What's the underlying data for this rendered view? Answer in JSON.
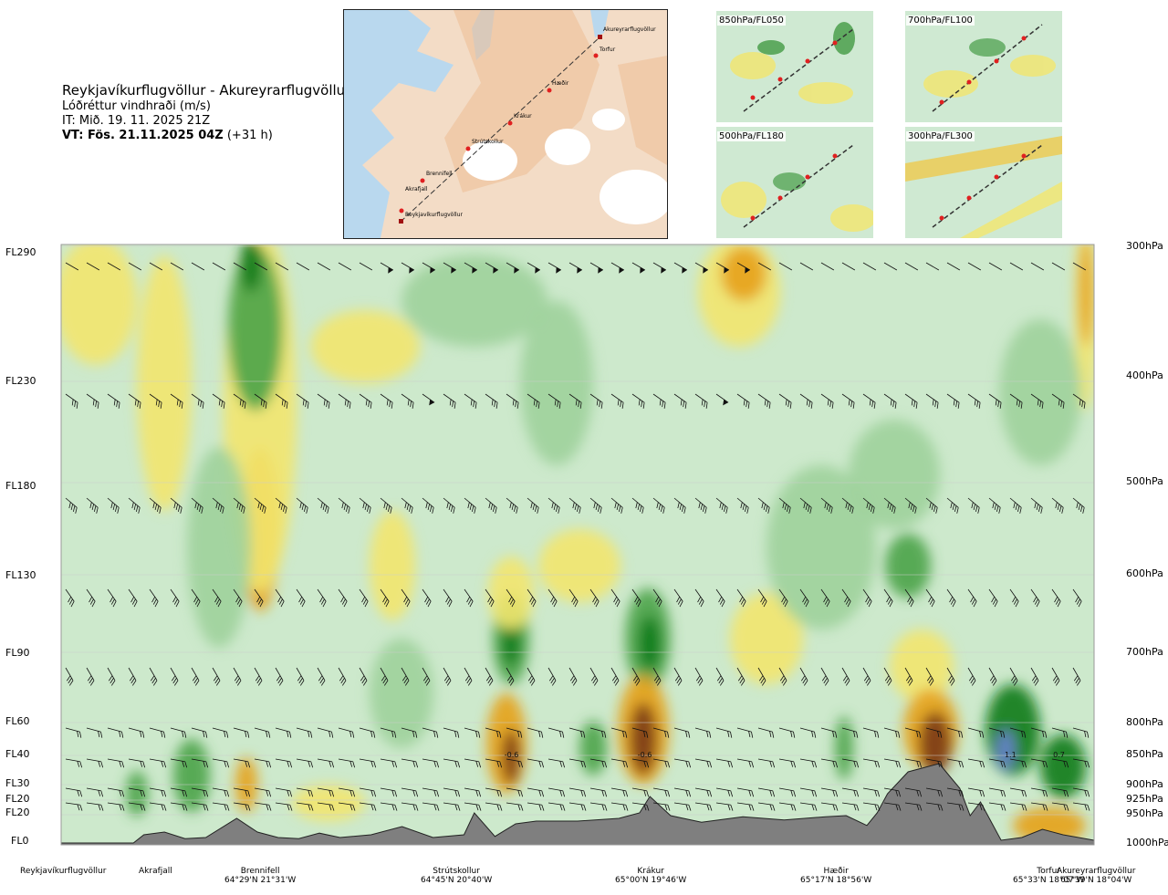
{
  "header": {
    "route": "Reykjavíkurflugvöllur - Akureyrarflugvöllur",
    "parameter": "Lóðréttur vindhraði (m/s)",
    "it": "IT: Mið. 19. 11. 2025 21Z",
    "vt": "VT: Fös. 21.11.2025 04Z",
    "vt_offset": " (+31 h)"
  },
  "map": {
    "places": [
      "Akureyrarflugvöllur",
      "Torfur",
      "Hæðir",
      "Krákur",
      "Strútskollur",
      "Brennifell",
      "Akrafjall",
      "Reykjavíkurflugvöllur"
    ]
  },
  "thumbnails": [
    "850hPa/FL050",
    "700hPa/FL100",
    "500hPa/FL180",
    "300hPa/FL300"
  ],
  "colors": {
    "strong_down": "#7a3a12",
    "moderate_down": "#e6a11a",
    "weak_down": "#f2e66e",
    "neutral": "#cde9cc",
    "weak_up": "#9fd19b",
    "moderate_up": "#4ba348",
    "strong_up": "#0c7a19",
    "very_strong_up": "#6a7fd8",
    "terrain": "#7f7f7f"
  },
  "chart_data": {
    "type": "heatmap",
    "title": "Lóðréttur vindhraði (m/s)",
    "flight_levels": [
      "FL290",
      "FL230",
      "FL180",
      "FL130",
      "FL90",
      "FL60",
      "FL40",
      "FL30",
      "FL20",
      "FL20",
      "FL0"
    ],
    "pressure_levels": [
      "300hPa",
      "400hPa",
      "500hPa",
      "600hPa",
      "700hPa",
      "800hPa",
      "850hPa",
      "900hPa",
      "925hPa",
      "950hPa",
      "1000hPa"
    ],
    "stations": [
      {
        "name": "Reykjavíkurflugvöllur",
        "coord": "",
        "pos": 0.0
      },
      {
        "name": "Akrafjall",
        "coord": "",
        "pos": 0.09
      },
      {
        "name": "Brennifell",
        "coord": "64°29'N 21°31'W",
        "pos": 0.19
      },
      {
        "name": "Strútskollur",
        "coord": "64°45'N 20°40'W",
        "pos": 0.38
      },
      {
        "name": "Krákur",
        "coord": "65°00'N 19°46'W",
        "pos": 0.57
      },
      {
        "name": "Hæðir",
        "coord": "65°17'N 18°56'W",
        "pos": 0.76
      },
      {
        "name": "Torfur",
        "coord": "65°33'N 18°07'W",
        "pos": 0.94
      },
      {
        "name": "Akureyrarflugvöllur",
        "coord": "65°39'N 18°04'W",
        "pos": 0.99
      }
    ],
    "annotations": [
      "-0.6",
      "-0.6",
      "1.1",
      "0.7"
    ],
    "annotation_pos": [
      0.436,
      0.565,
      0.919,
      0.966
    ],
    "terrain": [
      [
        0,
        0
      ],
      [
        0.07,
        0
      ],
      [
        0.08,
        0.15
      ],
      [
        0.1,
        0.2
      ],
      [
        0.12,
        0.08
      ],
      [
        0.14,
        0.1
      ],
      [
        0.17,
        0.45
      ],
      [
        0.19,
        0.2
      ],
      [
        0.21,
        0.1
      ],
      [
        0.23,
        0.08
      ],
      [
        0.25,
        0.18
      ],
      [
        0.27,
        0.1
      ],
      [
        0.3,
        0.15
      ],
      [
        0.33,
        0.3
      ],
      [
        0.36,
        0.1
      ],
      [
        0.39,
        0.15
      ],
      [
        0.4,
        0.55
      ],
      [
        0.42,
        0.12
      ],
      [
        0.44,
        0.35
      ],
      [
        0.46,
        0.4
      ],
      [
        0.5,
        0.4
      ],
      [
        0.54,
        0.45
      ],
      [
        0.56,
        0.55
      ],
      [
        0.57,
        0.85
      ],
      [
        0.59,
        0.5
      ],
      [
        0.62,
        0.38
      ],
      [
        0.66,
        0.48
      ],
      [
        0.7,
        0.42
      ],
      [
        0.74,
        0.48
      ],
      [
        0.76,
        0.5
      ],
      [
        0.78,
        0.32
      ],
      [
        0.79,
        0.55
      ],
      [
        0.8,
        0.9
      ],
      [
        0.82,
        1.3
      ],
      [
        0.85,
        1.45
      ],
      [
        0.87,
        1.0
      ],
      [
        0.88,
        0.5
      ],
      [
        0.89,
        0.75
      ],
      [
        0.9,
        0.4
      ],
      [
        0.91,
        0.05
      ],
      [
        0.93,
        0.1
      ],
      [
        0.95,
        0.25
      ],
      [
        0.97,
        0.15
      ],
      [
        1.0,
        0.05
      ]
    ]
  }
}
